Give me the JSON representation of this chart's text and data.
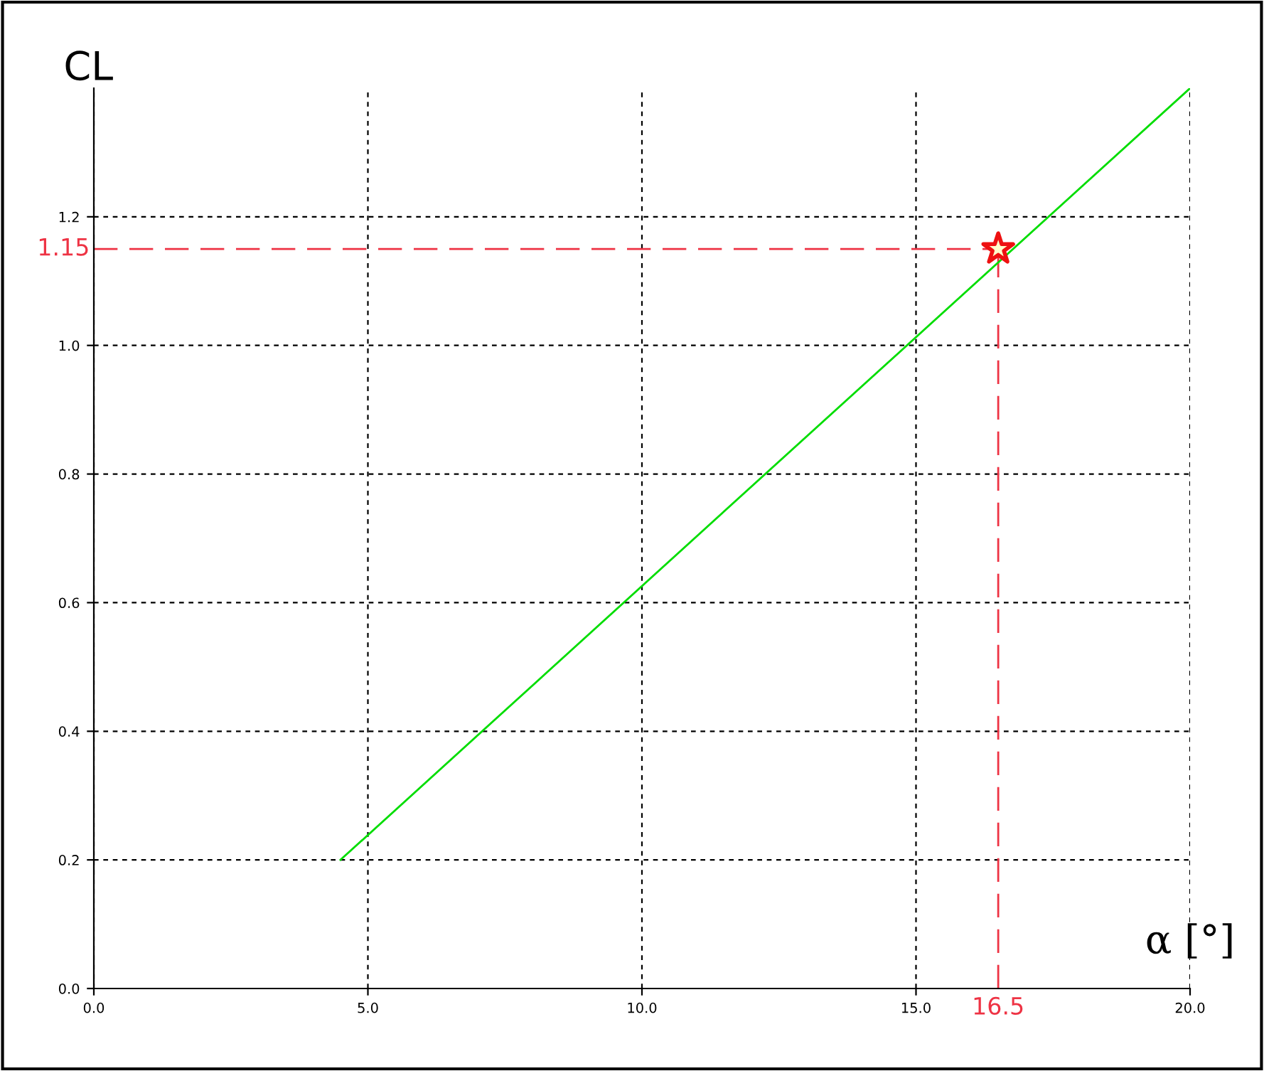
{
  "chart_data": {
    "type": "line",
    "xlabel": "α [°]",
    "ylabel": "CL",
    "xlim": [
      0,
      20
    ],
    "ylim": [
      0,
      1.4
    ],
    "xticks": [
      {
        "value": 0,
        "label": "0.0"
      },
      {
        "value": 5,
        "label": "5.0"
      },
      {
        "value": 10,
        "label": "10.0"
      },
      {
        "value": 15,
        "label": "15.0"
      },
      {
        "value": 20,
        "label": "20.0"
      }
    ],
    "yticks": [
      {
        "value": 0,
        "label": "0.0"
      },
      {
        "value": 0.2,
        "label": "0.2"
      },
      {
        "value": 0.4,
        "label": "0.4"
      },
      {
        "value": 0.6,
        "label": "0.6"
      },
      {
        "value": 0.8,
        "label": "0.8"
      },
      {
        "value": 1.0,
        "label": "1.0"
      },
      {
        "value": 1.2,
        "label": "1.2"
      }
    ],
    "grid": true,
    "line_style": "solid",
    "series": [
      {
        "color": "#00dd00",
        "x": [
          4.5,
          20
        ],
        "values": [
          0.2,
          1.4
        ],
        "marker": "none"
      },
      {
        "type": "scatter",
        "color": "#ee1111",
        "x": [
          16.5
        ],
        "values": [
          1.15
        ],
        "marker": "star"
      }
    ],
    "ref_lines": [
      {
        "axis": "x",
        "value": 16.5,
        "label": "16.5",
        "color": "#ee3344",
        "line_style": "dashed"
      },
      {
        "axis": "y",
        "value": 1.15,
        "label": "1.15",
        "color": "#ee3344",
        "line_style": "dashed"
      }
    ]
  }
}
